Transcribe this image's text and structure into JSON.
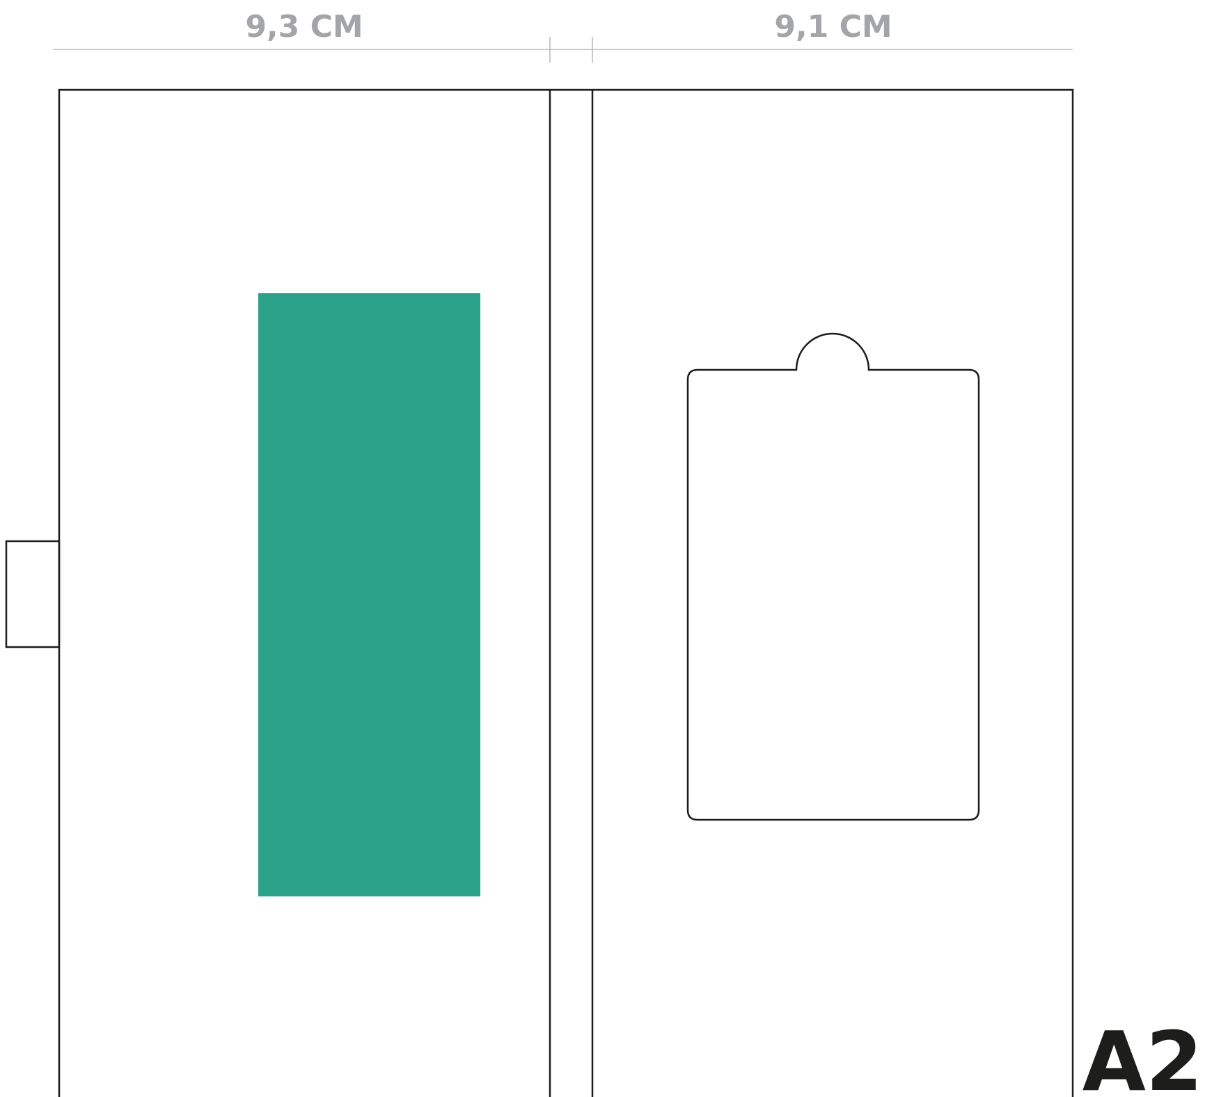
{
  "dimensions": {
    "left_width_label": "9,3 CM",
    "right_width_label": "9,1 CM"
  },
  "size_code": "A2",
  "colors": {
    "accent_block": "#2ba189",
    "outline": "#1d1d1b",
    "dimension_text": "#a4a5a8",
    "dimension_line": "#b5b6b8"
  }
}
